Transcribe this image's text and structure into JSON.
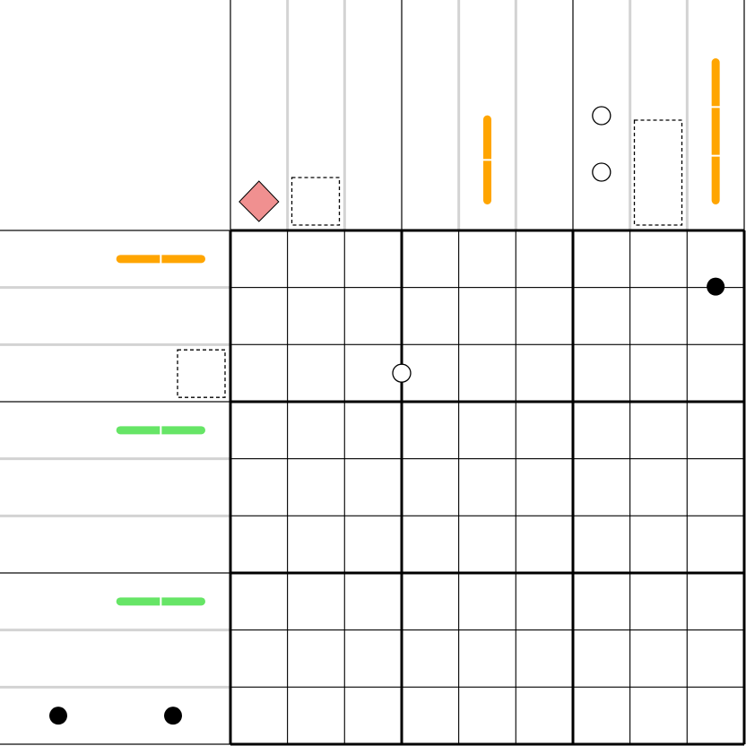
{
  "puzzle": {
    "rows": 9,
    "cols": 9,
    "box_size": 3,
    "colors": {
      "orange": "#ffa500",
      "green": "#66e566",
      "pink": "#f09090",
      "black": "#000000",
      "light_line": "#d3d3d3",
      "box_line": "#666666"
    },
    "top_clues": [
      {
        "col": 0,
        "type": "diamond",
        "color": "pink"
      },
      {
        "col": 1,
        "type": "dashed-box",
        "span": 1
      },
      {
        "col": 4,
        "type": "bar",
        "color": "orange",
        "segments": 2
      },
      {
        "col": 6,
        "type": "circles",
        "count": 2
      },
      {
        "col": 7,
        "type": "dashed-box",
        "span": 2
      },
      {
        "col": 8,
        "type": "bar",
        "color": "orange",
        "segments": 3
      }
    ],
    "left_clues": [
      {
        "row": 0,
        "type": "bar",
        "color": "orange",
        "segments": 2
      },
      {
        "row": 2,
        "type": "dashed-box",
        "span": 1
      },
      {
        "row": 3,
        "type": "bar",
        "color": "green",
        "segments": 2
      },
      {
        "row": 6,
        "type": "bar",
        "color": "green",
        "segments": 2
      },
      {
        "row": 8,
        "type": "dots",
        "count": 2
      }
    ],
    "grid_marks": [
      {
        "type": "black-dot",
        "between_rows": [
          0,
          1
        ],
        "col": 8,
        "note": "edge"
      },
      {
        "type": "white-circle",
        "row": 2,
        "between_cols": [
          2,
          3
        ]
      }
    ]
  }
}
